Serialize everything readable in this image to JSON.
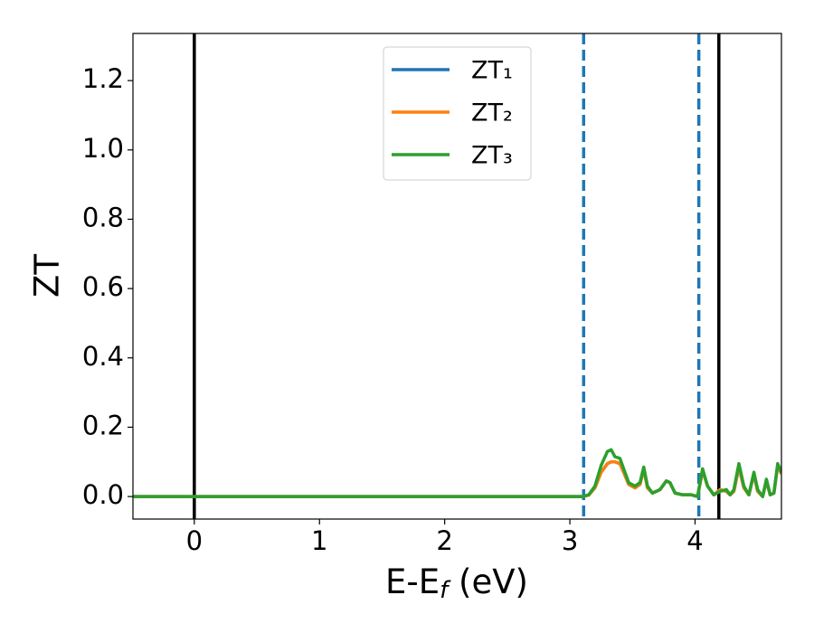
{
  "chart_data": {
    "type": "line",
    "xlabel": [
      "E-E",
      "f",
      " (eV)"
    ],
    "ylabel": "ZT",
    "xlim": [
      -0.49,
      4.69
    ],
    "ylim": [
      -0.065,
      1.336
    ],
    "xticks": [
      0,
      1,
      2,
      3,
      4
    ],
    "yticks": [
      {
        "value": 0,
        "label": "0.0"
      },
      0.2,
      0.4,
      0.6,
      0.8,
      {
        "value": 1,
        "label": "1.0"
      },
      1.2
    ],
    "legend": "upper center",
    "vlines": [
      {
        "x": 0,
        "color": "#000000",
        "style": "solid"
      },
      {
        "x": 4.19,
        "color": "#000000",
        "style": "solid"
      },
      {
        "x": 3.11,
        "color": "#1f77b4",
        "style": "dashed"
      },
      {
        "x": 4.03,
        "color": "#1f77b4",
        "style": "dashed"
      }
    ],
    "x": [
      -0.49,
      3.0,
      3.1,
      3.15,
      3.2,
      3.25,
      3.3,
      3.33,
      3.36,
      3.4,
      3.43,
      3.47,
      3.52,
      3.56,
      3.59,
      3.62,
      3.66,
      3.72,
      3.77,
      3.8,
      3.84,
      3.9,
      3.97,
      4.02,
      4.06,
      4.1,
      4.15,
      4.2,
      4.25,
      4.28,
      4.31,
      4.35,
      4.39,
      4.43,
      4.47,
      4.5,
      4.54,
      4.57,
      4.6,
      4.63,
      4.66,
      4.69
    ],
    "series": [
      {
        "name": "ZT₁",
        "color": "#1f77b4",
        "values": [
          0,
          0,
          0,
          0.004,
          0.025,
          0.07,
          0.095,
          0.1,
          0.1,
          0.095,
          0.07,
          0.035,
          0.025,
          0.035,
          0.08,
          0.025,
          0.01,
          0.02,
          0.045,
          0.04,
          0.01,
          0.005,
          0.005,
          0.0,
          0.075,
          0.03,
          0.005,
          0.02,
          0.015,
          0.005,
          0.015,
          0.085,
          0.025,
          0.005,
          0.065,
          0.015,
          0.0,
          0.045,
          0.005,
          0.01,
          0.09,
          0.065
        ]
      },
      {
        "name": "ZT₂",
        "color": "#ff7f0e",
        "values": [
          0,
          0,
          0,
          0.004,
          0.025,
          0.07,
          0.095,
          0.1,
          0.1,
          0.095,
          0.07,
          0.035,
          0.025,
          0.035,
          0.08,
          0.025,
          0.01,
          0.02,
          0.045,
          0.04,
          0.01,
          0.005,
          0.005,
          0.0,
          0.075,
          0.03,
          0.005,
          0.02,
          0.015,
          0.005,
          0.015,
          0.085,
          0.025,
          0.005,
          0.065,
          0.015,
          0.0,
          0.045,
          0.005,
          0.01,
          0.09,
          0.065
        ]
      },
      {
        "name": "ZT₃",
        "color": "#2ca02c",
        "values": [
          0,
          0,
          0,
          0.005,
          0.03,
          0.09,
          0.13,
          0.135,
          0.115,
          0.11,
          0.08,
          0.04,
          0.03,
          0.04,
          0.085,
          0.03,
          0.01,
          0.02,
          0.045,
          0.04,
          0.01,
          0.005,
          0.005,
          0.0,
          0.08,
          0.03,
          0.005,
          0.015,
          0.02,
          0.005,
          0.02,
          0.095,
          0.03,
          0.005,
          0.07,
          0.02,
          0.0,
          0.05,
          0.005,
          0.01,
          0.095,
          0.07
        ]
      }
    ]
  }
}
